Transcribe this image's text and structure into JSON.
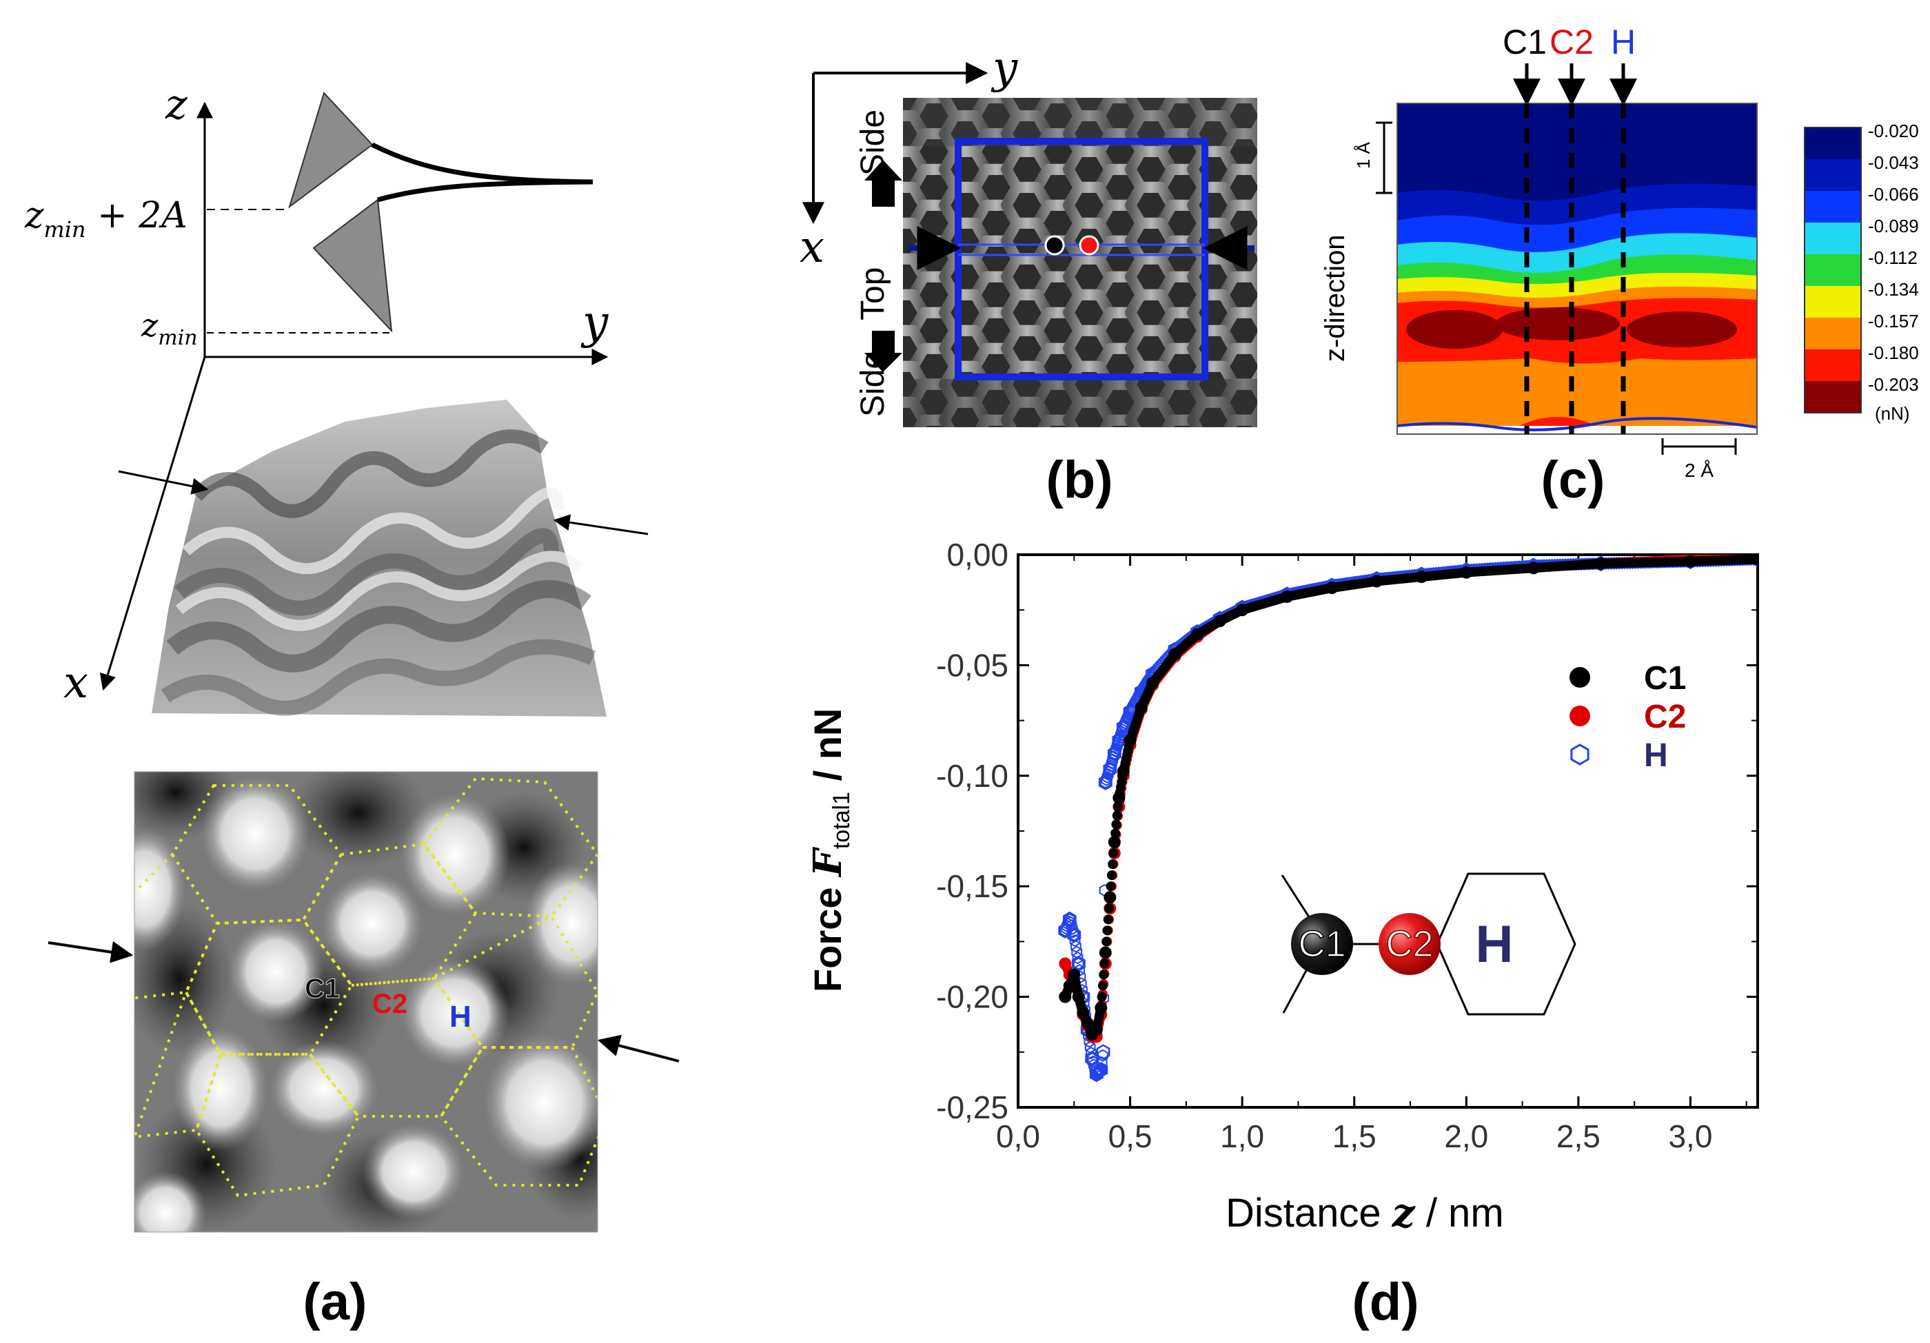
{
  "panels": {
    "a": {
      "label": "(a)",
      "axes": {
        "z": "z",
        "y": "y",
        "x": "x"
      },
      "z_upper_label": "z",
      "z_upper_sub": "min",
      "z_upper_suffix": " + 2A",
      "z_lower_label": "z",
      "z_lower_sub": "min",
      "site_labels": {
        "c1": "C1",
        "c2": "C2",
        "h": "H"
      }
    },
    "b": {
      "label": "(b)",
      "axis_y": "y",
      "axis_x": "x",
      "side_top": "Side",
      "top": "Top",
      "side_bottom": "Side"
    },
    "c": {
      "label": "(c)",
      "top_labels": {
        "c1": "C1",
        "c2": "C2",
        "h": "H"
      },
      "ylabel": "z-direction",
      "scale_z": "1 Å",
      "scale_x": "2 Å",
      "colorbar_ticks": [
        "-0.020",
        "-0.043",
        "-0.066",
        "-0.089",
        "-0.112",
        "-0.134",
        "-0.157",
        "-0.180",
        "-0.203"
      ],
      "colorbar_unit": "(nN)",
      "colorbar_colors": [
        "#000a80",
        "#0016b8",
        "#0838ff",
        "#22d8f0",
        "#28d838",
        "#f2f000",
        "#ff8a00",
        "#ff1400",
        "#8a0000"
      ]
    },
    "d": {
      "label": "(d)",
      "inset_labels": {
        "c1": "C1",
        "c2": "C2",
        "h": "H"
      }
    }
  },
  "chart_data": {
    "type": "scatter",
    "title": "",
    "xlabel_prefix": "Distance ",
    "xlabel_var": "z",
    "xlabel_suffix": " / nm",
    "ylabel_prefix": "Force ",
    "ylabel_var": "F",
    "ylabel_sub": "total1",
    "ylabel_suffix": " / nN",
    "xlim": [
      0.0,
      3.3
    ],
    "ylim": [
      -0.25,
      0.0
    ],
    "xticks": [
      "0,0",
      "0,5",
      "1,0",
      "1,5",
      "2,0",
      "2,5",
      "3,0"
    ],
    "xtick_values": [
      0.0,
      0.5,
      1.0,
      1.5,
      2.0,
      2.5,
      3.0
    ],
    "yticks": [
      "0,00",
      "-0,05",
      "-0,10",
      "-0,15",
      "-0,20",
      "-0,25"
    ],
    "ytick_values": [
      0.0,
      -0.05,
      -0.1,
      -0.15,
      -0.2,
      -0.25
    ],
    "legend_position": "top-right",
    "series": [
      {
        "name": "C1",
        "color": "#000000",
        "marker": "filled-circle",
        "x": [
          0.21,
          0.23,
          0.25,
          0.27,
          0.29,
          0.31,
          0.33,
          0.35,
          0.37,
          0.39,
          0.41,
          0.43,
          0.45,
          0.47,
          0.5,
          0.55,
          0.6,
          0.7,
          0.8,
          0.9,
          1.0,
          1.2,
          1.4,
          1.6,
          1.8,
          2.0,
          2.3,
          2.6,
          3.0,
          3.3
        ],
        "y": [
          -0.2,
          -0.195,
          -0.19,
          -0.2,
          -0.207,
          -0.212,
          -0.217,
          -0.215,
          -0.205,
          -0.18,
          -0.155,
          -0.13,
          -0.11,
          -0.098,
          -0.084,
          -0.069,
          -0.058,
          -0.045,
          -0.036,
          -0.03,
          -0.025,
          -0.019,
          -0.015,
          -0.012,
          -0.01,
          -0.008,
          -0.006,
          -0.004,
          -0.003,
          -0.002
        ]
      },
      {
        "name": "C2",
        "color": "#e00000",
        "marker": "filled-circle",
        "x": [
          0.21,
          0.23,
          0.25,
          0.27,
          0.29,
          0.31,
          0.33,
          0.35,
          0.37,
          0.39,
          0.41,
          0.43,
          0.45,
          0.47,
          0.5,
          0.55,
          0.6,
          0.7,
          0.8,
          0.9,
          1.0,
          1.2,
          1.4,
          1.6,
          1.8,
          2.0,
          2.3,
          2.6,
          3.0,
          3.3
        ],
        "y": [
          -0.185,
          -0.19,
          -0.193,
          -0.2,
          -0.208,
          -0.213,
          -0.218,
          -0.218,
          -0.208,
          -0.185,
          -0.16,
          -0.135,
          -0.114,
          -0.1,
          -0.086,
          -0.07,
          -0.059,
          -0.046,
          -0.037,
          -0.03,
          -0.025,
          -0.019,
          -0.015,
          -0.012,
          -0.01,
          -0.008,
          -0.006,
          -0.004,
          -0.002,
          -0.001
        ]
      },
      {
        "name": "H",
        "color": "#2244ee",
        "marker": "open-hexagon",
        "x": [
          0.21,
          0.23,
          0.25,
          0.27,
          0.29,
          0.31,
          0.33,
          0.35,
          0.37,
          0.38,
          0.39,
          0.41,
          0.43,
          0.45,
          0.47,
          0.5,
          0.55,
          0.6,
          0.7,
          0.8,
          0.9,
          1.0,
          1.2,
          1.4,
          1.6,
          1.8,
          2.0,
          2.3,
          2.6,
          3.0,
          3.3
        ],
        "y": [
          -0.17,
          -0.165,
          -0.172,
          -0.185,
          -0.2,
          -0.215,
          -0.228,
          -0.235,
          -0.233,
          -0.225,
          -0.103,
          -0.097,
          -0.09,
          -0.084,
          -0.078,
          -0.071,
          -0.062,
          -0.054,
          -0.043,
          -0.035,
          -0.029,
          -0.024,
          -0.018,
          -0.014,
          -0.011,
          -0.009,
          -0.007,
          -0.005,
          -0.004,
          -0.003,
          -0.002
        ]
      }
    ]
  }
}
